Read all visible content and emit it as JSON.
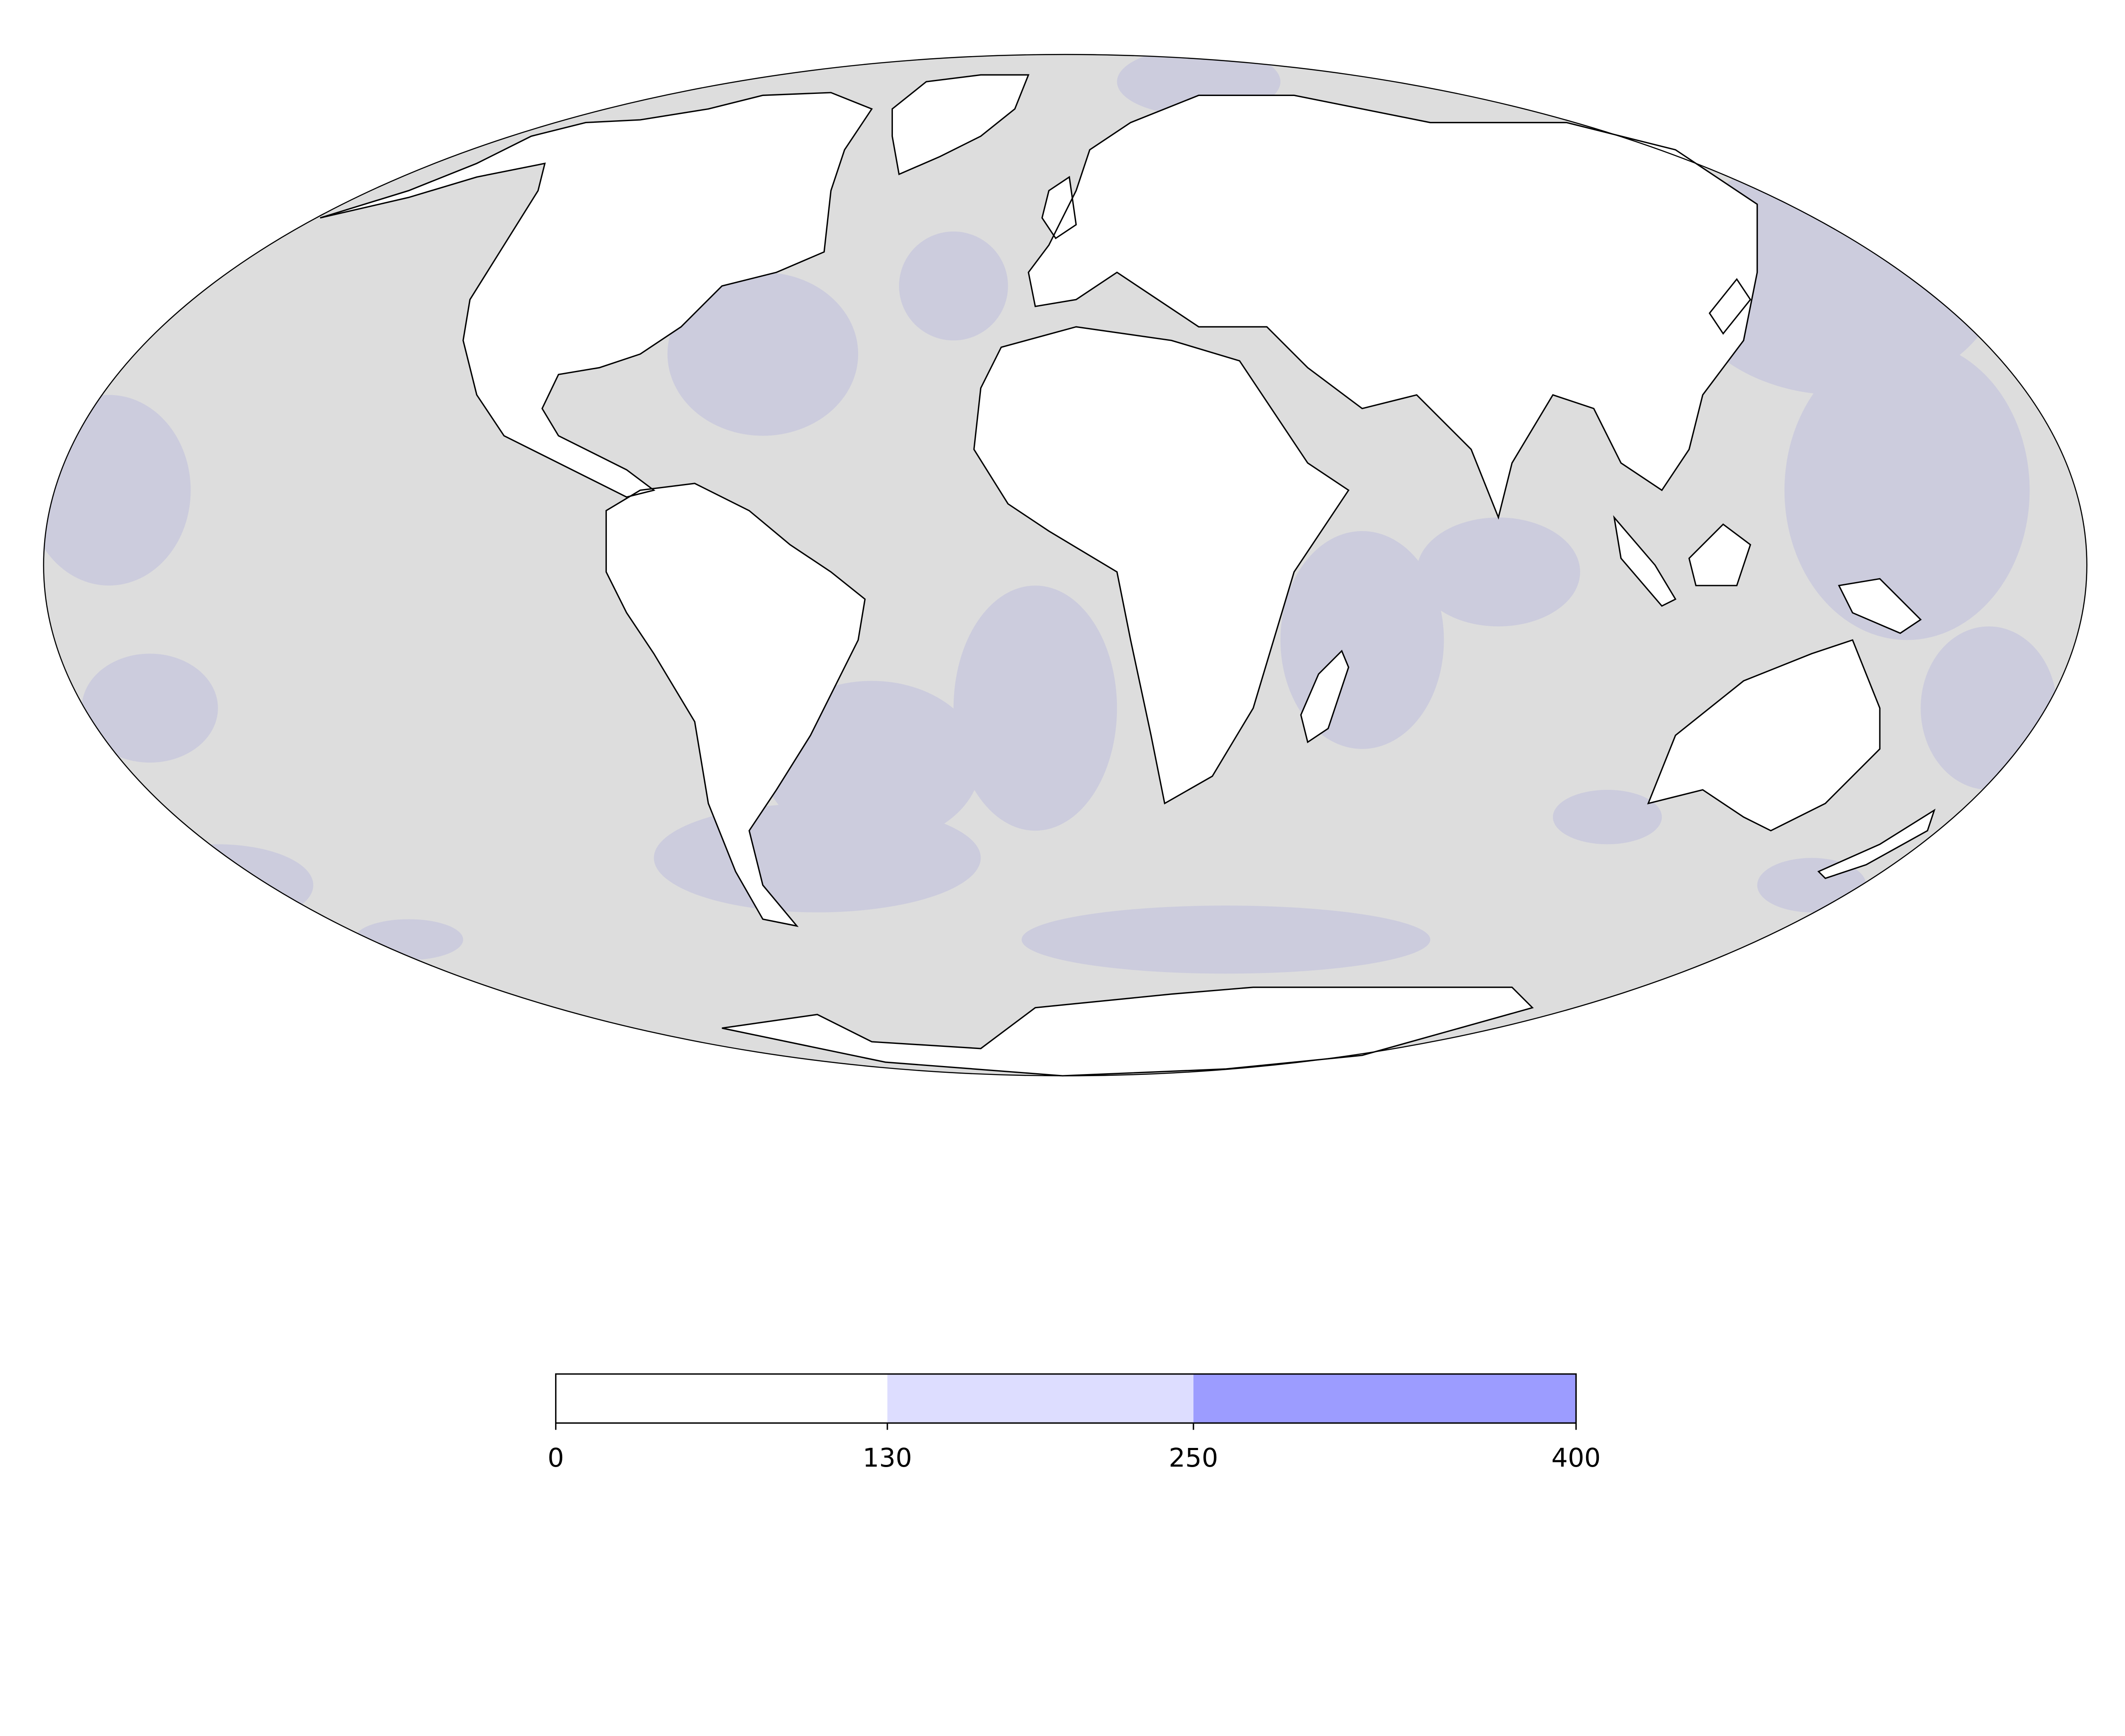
{
  "chart_data": {
    "type": "heatmap",
    "projection": "mollweide",
    "ocean_color": "#dddddd",
    "ocean_overlay_color": "#ccccdd",
    "coastline_color": "#000000",
    "colorbar": {
      "orientation": "horizontal",
      "placement": "bottom",
      "levels": [
        0,
        130,
        250,
        400
      ],
      "tick_labels": [
        "0",
        "130",
        "250",
        "400"
      ],
      "colors": [
        "#ffffff",
        "#ddddff",
        "#9c9cff"
      ]
    }
  }
}
